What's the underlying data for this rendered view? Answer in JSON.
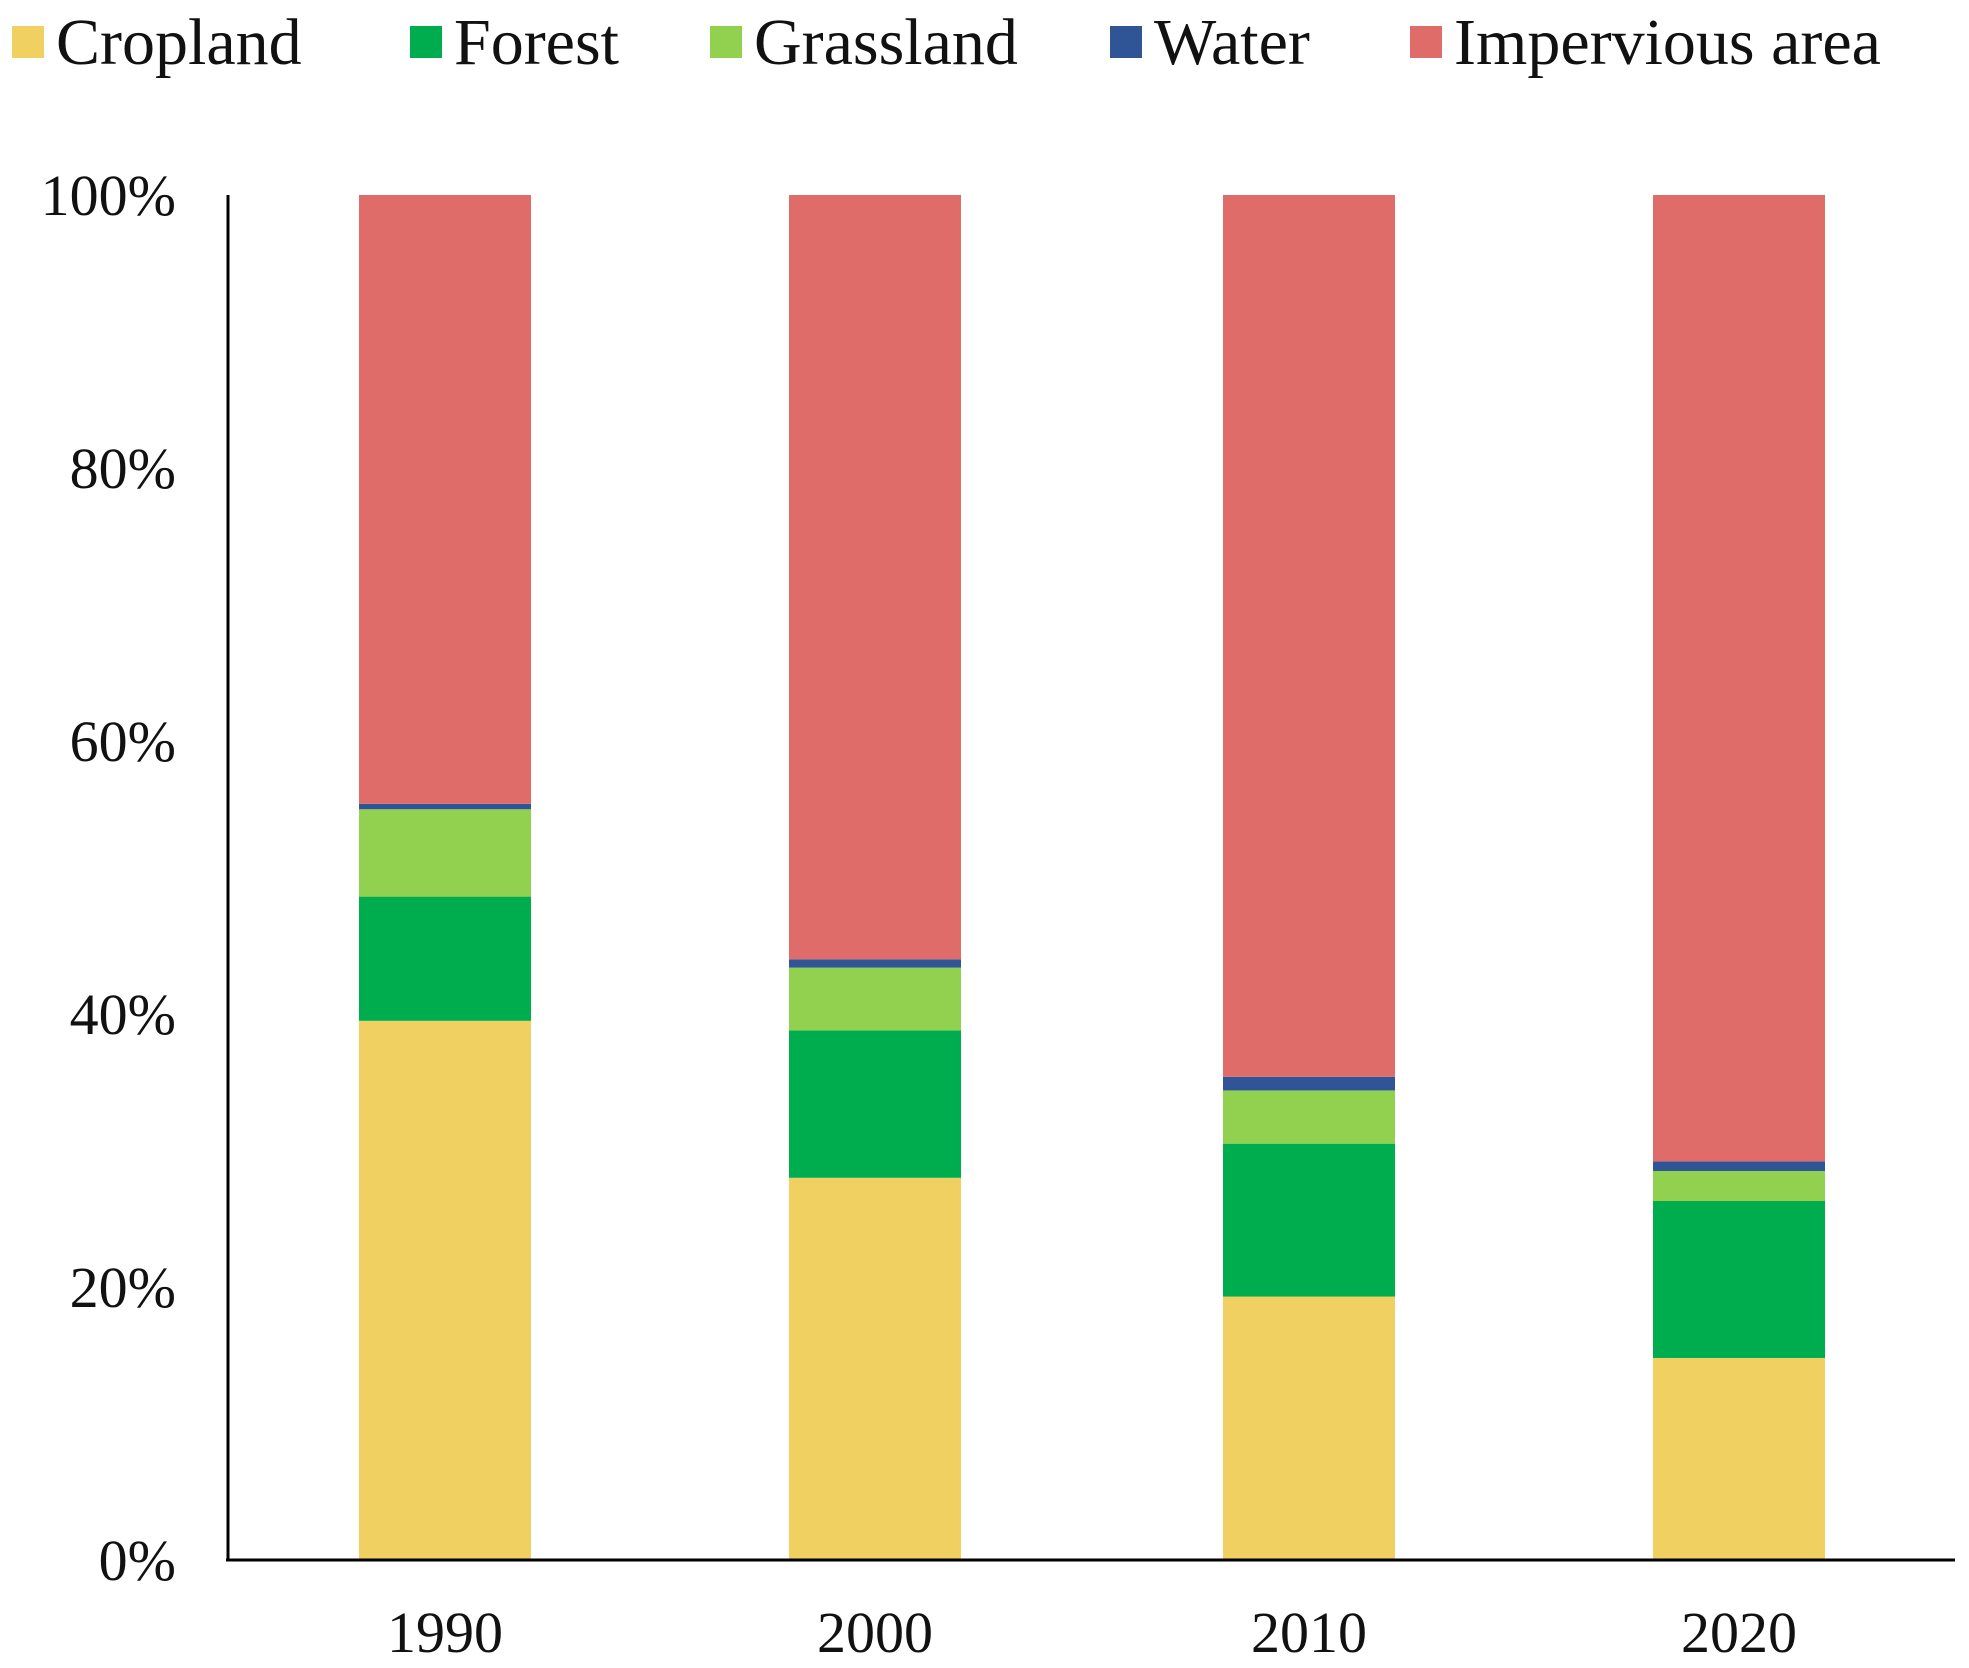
{
  "chart_data": {
    "type": "bar",
    "stacked": true,
    "percent": true,
    "title": "",
    "xlabel": "",
    "ylabel": "",
    "categories": [
      "1990",
      "2000",
      "2010",
      "2020"
    ],
    "ylim": [
      0,
      100
    ],
    "yticks": [
      0,
      20,
      40,
      60,
      80,
      100
    ],
    "ytick_labels": [
      "0%",
      "20%",
      "40%",
      "60%",
      "80%",
      "100%"
    ],
    "legend_position": "top",
    "grid": false,
    "series": [
      {
        "name": "Cropland",
        "color": "#F0D060",
        "values": [
          39.5,
          28.0,
          19.3,
          14.8
        ]
      },
      {
        "name": "Forest",
        "color": "#00AD4E",
        "values": [
          9.1,
          10.8,
          11.2,
          11.5
        ]
      },
      {
        "name": "Grassland",
        "color": "#92D050",
        "values": [
          6.4,
          4.6,
          3.9,
          2.2
        ]
      },
      {
        "name": "Water",
        "color": "#2F5597",
        "values": [
          0.4,
          0.6,
          1.0,
          0.7
        ]
      },
      {
        "name": "Impervious area",
        "color": "#E06C6A",
        "values": [
          44.6,
          56.0,
          64.6,
          70.8
        ]
      }
    ]
  }
}
